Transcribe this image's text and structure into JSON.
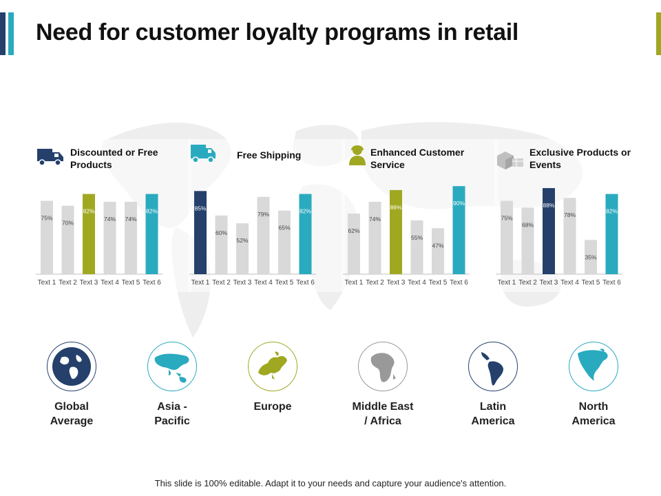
{
  "title": "Need for customer loyalty programs in retail",
  "colors": {
    "navy": "#24406b",
    "teal": "#2aaabf",
    "olive": "#a0a821",
    "grey_bar": "#d9d9d9",
    "map": "#eeeeee"
  },
  "panels": [
    {
      "title": "Discounted or Free Products",
      "icon": "truck-icon",
      "chart_data": {
        "type": "bar",
        "categories": [
          "Text 1",
          "Text 2",
          "Text 3",
          "Text 4",
          "Text 5",
          "Text 6"
        ],
        "values": [
          75,
          70,
          82,
          74,
          74,
          82
        ],
        "value_labels": [
          "75%",
          "70%",
          "82%",
          "74%",
          "74%",
          "82%"
        ],
        "bar_colors": [
          "#d9d9d9",
          "#d9d9d9",
          "#a0a821",
          "#d9d9d9",
          "#d9d9d9",
          "#2aaabf"
        ]
      }
    },
    {
      "title": "Free Shipping",
      "icon": "delivery-van-icon",
      "chart_data": {
        "type": "bar",
        "categories": [
          "Text 1",
          "Text 2",
          "Text 3",
          "Text 4",
          "Text 5",
          "Text 6"
        ],
        "values": [
          85,
          60,
          52,
          79,
          65,
          82
        ],
        "value_labels": [
          "85%",
          "60%",
          "52%",
          "79%",
          "65%",
          "82%"
        ],
        "bar_colors": [
          "#24406b",
          "#d9d9d9",
          "#d9d9d9",
          "#d9d9d9",
          "#d9d9d9",
          "#2aaabf"
        ]
      }
    },
    {
      "title": "Enhanced Customer Service",
      "icon": "support-agent-icon",
      "chart_data": {
        "type": "bar",
        "categories": [
          "Text 1",
          "Text 2",
          "Text 3",
          "Text 4",
          "Text 5",
          "Text 6"
        ],
        "values": [
          62,
          74,
          86,
          55,
          47,
          90
        ],
        "value_labels": [
          "62%",
          "74%",
          "86%",
          "55%",
          "47%",
          "90%"
        ],
        "bar_colors": [
          "#d9d9d9",
          "#d9d9d9",
          "#a0a821",
          "#d9d9d9",
          "#d9d9d9",
          "#2aaabf"
        ]
      }
    },
    {
      "title": "Exclusive Products or Events",
      "icon": "products-boxes-icon",
      "chart_data": {
        "type": "bar",
        "categories": [
          "Text 1",
          "Text 2",
          "Text 3",
          "Text 4",
          "Text 5",
          "Text 6"
        ],
        "values": [
          75,
          68,
          88,
          78,
          35,
          82
        ],
        "value_labels": [
          "75%",
          "68%",
          "88%",
          "78%",
          "35%",
          "82%"
        ],
        "bar_colors": [
          "#d9d9d9",
          "#d9d9d9",
          "#24406b",
          "#d9d9d9",
          "#d9d9d9",
          "#2aaabf"
        ]
      }
    }
  ],
  "regions": [
    {
      "label": "Global\nAverage",
      "icon": "globe-icon",
      "color": "#24406b"
    },
    {
      "label": "Asia -\nPacific",
      "icon": "asia-pacific-map-icon",
      "color": "#2aaabf"
    },
    {
      "label": "Europe",
      "icon": "europe-map-icon",
      "color": "#a0a821"
    },
    {
      "label": "Middle East\n/ Africa",
      "icon": "africa-map-icon",
      "color": "#999999"
    },
    {
      "label": "Latin\nAmerica",
      "icon": "latin-america-map-icon",
      "color": "#24406b"
    },
    {
      "label": "North\nAmerica",
      "icon": "north-america-map-icon",
      "color": "#2aaabf"
    }
  ],
  "footer": "This slide is 100% editable. Adapt it to your needs and capture your audience's attention."
}
